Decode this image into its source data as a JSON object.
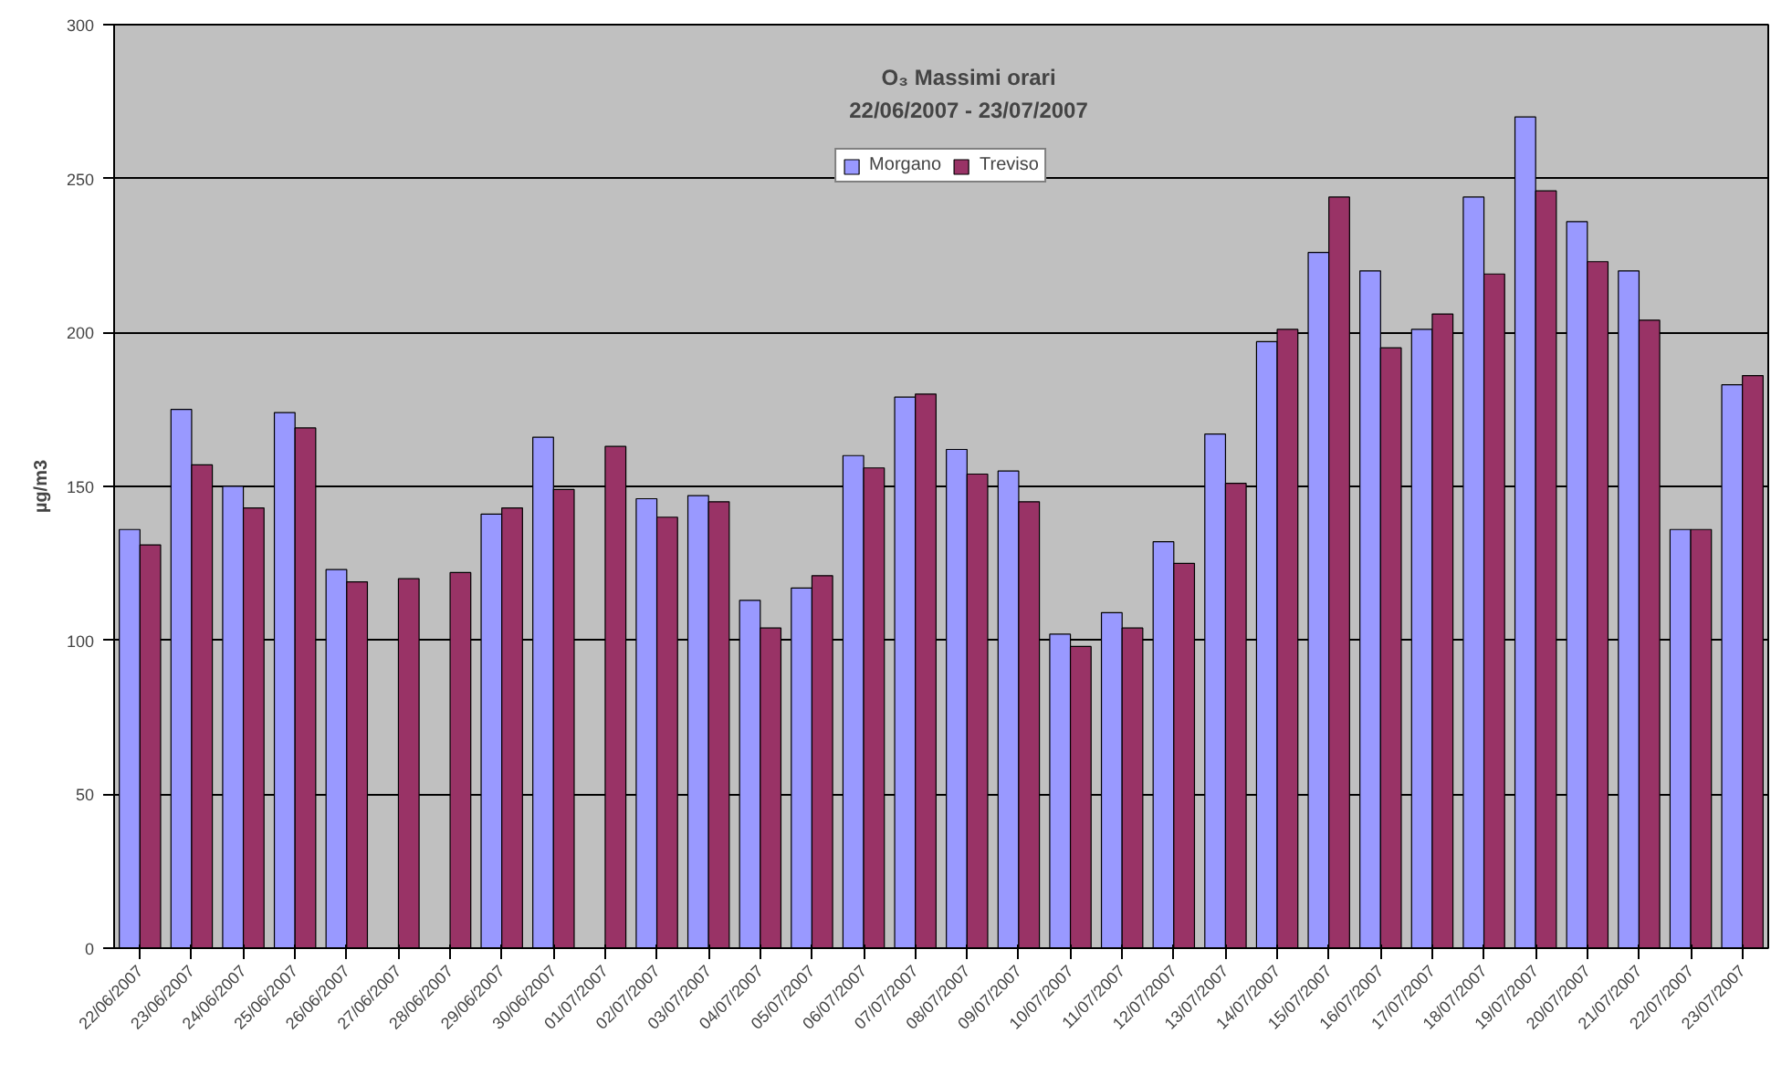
{
  "chart_data": {
    "type": "bar",
    "title": "O₃ Massimi orari",
    "subtitle": "22/06/2007 - 23/07/2007",
    "ylabel": "µg/m3",
    "categories": [
      "22/06/2007",
      "23/06/2007",
      "24/06/2007",
      "25/06/2007",
      "26/06/2007",
      "27/06/2007",
      "28/06/2007",
      "29/06/2007",
      "30/06/2007",
      "01/07/2007",
      "02/07/2007",
      "03/07/2007",
      "04/07/2007",
      "05/07/2007",
      "06/07/2007",
      "07/07/2007",
      "08/07/2007",
      "09/07/2007",
      "10/07/2007",
      "11/07/2007",
      "12/07/2007",
      "13/07/2007",
      "14/07/2007",
      "15/07/2007",
      "16/07/2007",
      "17/07/2007",
      "18/07/2007",
      "19/07/2007",
      "20/07/2007",
      "21/07/2007",
      "22/07/2007",
      "23/07/2007"
    ],
    "series": [
      {
        "name": "Morgano",
        "color": "#9999ff",
        "values": [
          136,
          175,
          150,
          174,
          123,
          null,
          null,
          141,
          166,
          null,
          146,
          147,
          113,
          117,
          160,
          179,
          162,
          155,
          102,
          109,
          132,
          167,
          197,
          226,
          220,
          201,
          244,
          270,
          236,
          220,
          136,
          183
        ]
      },
      {
        "name": "Treviso",
        "color": "#993366",
        "values": [
          131,
          157,
          143,
          169,
          119,
          120,
          122,
          143,
          149,
          163,
          140,
          145,
          104,
          121,
          156,
          180,
          154,
          145,
          98,
          104,
          125,
          151,
          201,
          244,
          195,
          206,
          219,
          246,
          223,
          204,
          136,
          186
        ]
      }
    ],
    "ylim": [
      0,
      300
    ],
    "yticks": [
      0,
      50,
      100,
      150,
      200,
      250,
      300
    ],
    "grid": "y",
    "legend": "top"
  }
}
